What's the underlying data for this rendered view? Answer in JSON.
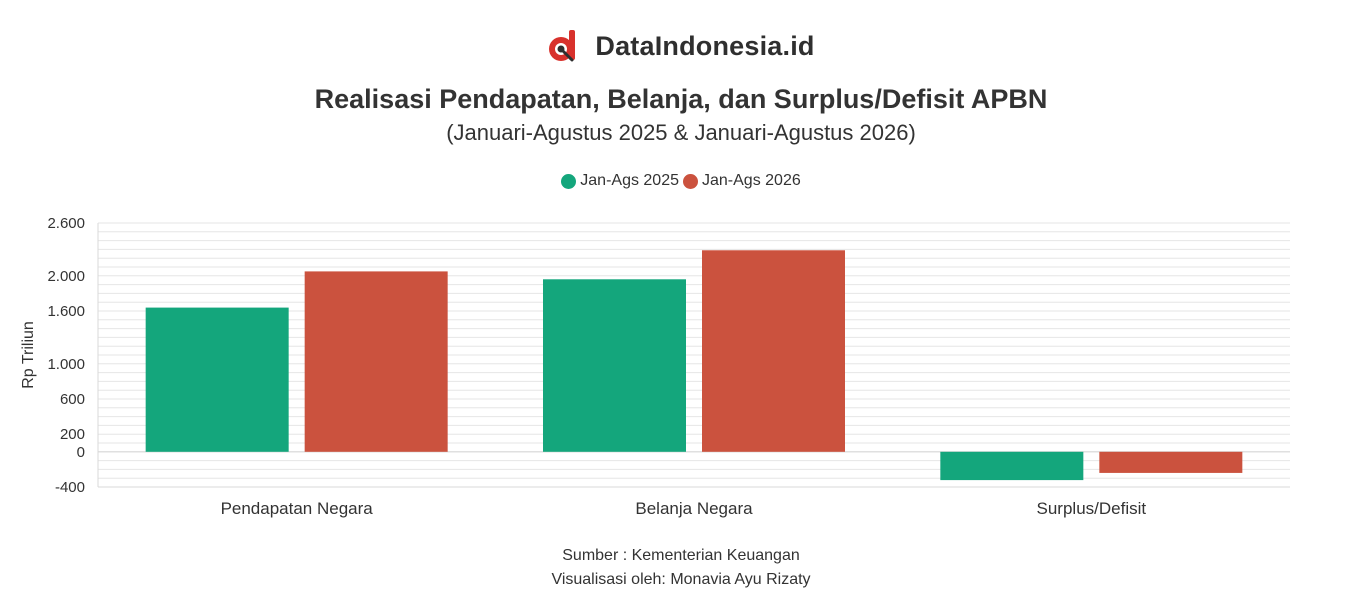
{
  "brand": {
    "name": "DataIndonesia.id",
    "logo_icon": "dataindonesia-logo-icon"
  },
  "colors": {
    "series_2025": "#14a67c",
    "series_2026": "#cb523e",
    "grid": "#e6e6e6",
    "text": "#333333"
  },
  "footer": {
    "source": "Sumber : Kementerian Keuangan",
    "author": "Visualisasi oleh: Monavia Ayu Rizaty"
  },
  "chart_data": {
    "type": "bar",
    "title": "Realisasi Pendapatan, Belanja, dan Surplus/Defisit APBN",
    "subtitle": "(Januari-Agustus 2025 & Januari-Agustus 2026)",
    "ylabel": "Rp Triliun",
    "xlabel": "",
    "categories": [
      "Pendapatan Negara",
      "Belanja Negara",
      "Surplus/Defisit"
    ],
    "series": [
      {
        "name": "Jan-Ags 2025",
        "values": [
          1638.7,
          1960.3,
          -321.6
        ]
      },
      {
        "name": "Jan-Ags 2026",
        "values": [
          2050.0,
          2290.0,
          -240.0
        ]
      }
    ],
    "ylim": [
      -400,
      2600
    ],
    "yticks": [
      -400,
      0,
      200,
      600,
      1000,
      1600,
      2000,
      2600
    ],
    "ytick_labels": [
      "-400",
      "0",
      "200",
      "600",
      "1.000",
      "1.600",
      "2.000",
      "2.600"
    ],
    "grid": true,
    "legend_position": "top-center"
  }
}
